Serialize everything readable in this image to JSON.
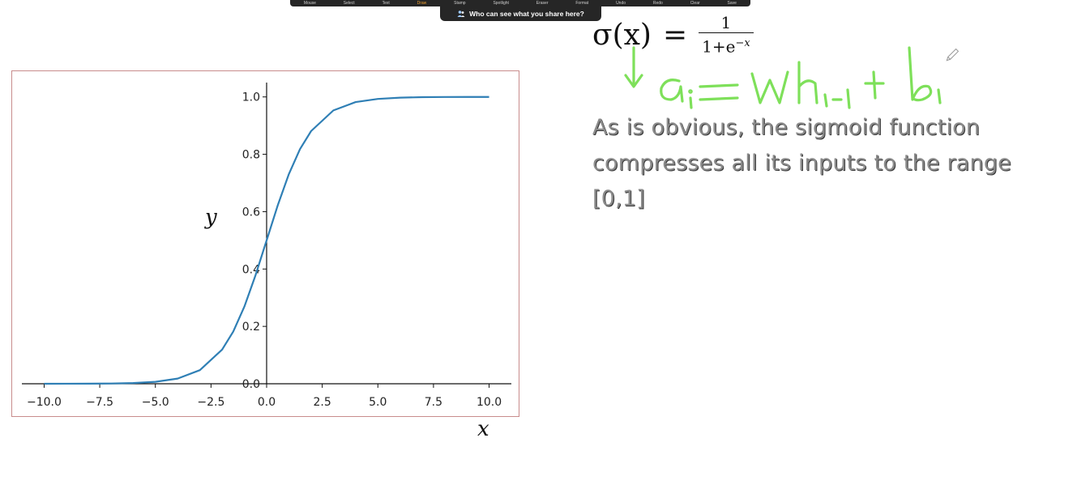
{
  "toolbar": {
    "items": [
      "Mouse",
      "Select",
      "Text",
      "Draw",
      "Stamp",
      "Spotlight",
      "Eraser",
      "Format",
      "Undo",
      "Redo",
      "Clear",
      "Save"
    ],
    "active_index": 3,
    "share_banner": "Who can see what you share here?"
  },
  "formula": {
    "lhs": "σ(x)",
    "equals": "=",
    "numerator": "1",
    "denominator_base": "1+e",
    "denominator_exp": "−x"
  },
  "handwriting": {
    "arrow_icon": "down-arrow-icon",
    "equation": "a_i = Wh_{i-1} + b_i",
    "color": "#7ee05a"
  },
  "body": {
    "line1": "As is obvious, the sigmoid function",
    "line2": "compresses all its inputs to the range",
    "line3": "[0,1]"
  },
  "chart_data": {
    "type": "line",
    "function": "sigmoid",
    "series": [
      {
        "color": "#2f7fb5",
        "x": [
          -10,
          -9,
          -8,
          -7,
          -6,
          -5,
          -4,
          -3,
          -2,
          -1.5,
          -1,
          -0.5,
          0,
          0.5,
          1,
          1.5,
          2,
          3,
          4,
          5,
          6,
          7,
          8,
          9,
          10
        ],
        "y": [
          4.54e-05,
          0.000123,
          0.000335,
          0.000911,
          0.00247,
          0.00669,
          0.018,
          0.0474,
          0.119,
          0.182,
          0.269,
          0.378,
          0.5,
          0.622,
          0.731,
          0.818,
          0.881,
          0.953,
          0.982,
          0.993,
          0.9975,
          0.9991,
          0.99966,
          0.99988,
          0.99995
        ]
      }
    ],
    "xlabel": "x",
    "ylabel": "y",
    "xlim": [
      -11,
      11
    ],
    "ylim": [
      0,
      1.05
    ],
    "x_ticks": [
      -10.0,
      -7.5,
      -5.0,
      -2.5,
      0.0,
      2.5,
      5.0,
      7.5,
      10.0
    ],
    "x_tick_labels": [
      "−10.0",
      "−7.5",
      "−5.0",
      "−2.5",
      "0.0",
      "2.5",
      "5.0",
      "7.5",
      "10.0"
    ],
    "y_ticks": [
      0.0,
      0.2,
      0.4,
      0.6,
      0.8,
      1.0
    ],
    "y_tick_labels": [
      "0.0",
      "0.2",
      "0.4",
      "0.6",
      "0.8",
      "1.0"
    ],
    "grid": false,
    "spines": "centered"
  }
}
